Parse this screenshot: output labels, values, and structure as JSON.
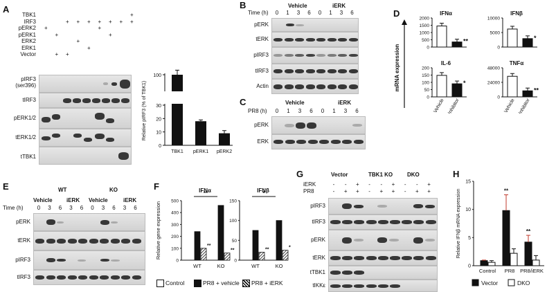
{
  "panels": {
    "A": "A",
    "B": "B",
    "C": "C",
    "D": "D",
    "E": "E",
    "F": "F",
    "G": "G",
    "H": "H"
  },
  "panel_a": {
    "row_labels": [
      "TBK1",
      "IRF3",
      "pERK2",
      "pERK1",
      "ERK2",
      "ERK1",
      "Vector"
    ],
    "row_signs": [
      [
        "",
        "",
        "",
        "",
        "",
        "",
        "",
        "",
        "+"
      ],
      [
        "",
        "",
        "+",
        "+",
        "+",
        "+",
        "+",
        "+",
        "+"
      ],
      [
        "+",
        "",
        "",
        "",
        "",
        "+",
        "",
        "",
        ""
      ],
      [
        "",
        "+",
        "",
        "",
        "",
        "",
        "+",
        "",
        ""
      ],
      [
        "",
        "",
        "",
        "+",
        "",
        "",
        "",
        "",
        ""
      ],
      [
        "",
        "",
        "",
        "",
        "+",
        "",
        "",
        "",
        ""
      ],
      [
        "",
        "+",
        "+",
        "",
        "",
        "",
        "",
        "",
        ""
      ]
    ],
    "blot_labels": [
      "pIRF3",
      "(ser396)",
      "tIRF3",
      "pERK1/2",
      "tERK1/2",
      "tTBK1"
    ]
  },
  "panel_b": {
    "time_label": "Time (h)",
    "group_vehicle": "Vehicle",
    "group_ierk": "iERK",
    "times": [
      "0",
      "1",
      "3",
      "6",
      "0",
      "1",
      "3",
      "6"
    ],
    "blots": [
      "pERK",
      "tERK",
      "pIRF3",
      "tIRF3",
      "Actin"
    ]
  },
  "panel_c": {
    "time_label": "PR8 (h)",
    "group_vehicle": "Vehicle",
    "group_ierk": "iERK",
    "times": [
      "0",
      "1",
      "3",
      "6",
      "0",
      "1",
      "3",
      "6"
    ],
    "blots": [
      "pERK",
      "ERK"
    ]
  },
  "panel_e": {
    "wt": "WT",
    "ko": "KO",
    "vehicle": "Vehicle",
    "ierk": "iERK",
    "time_label": "Time (h)",
    "times": [
      "0",
      "3",
      "6",
      "3",
      "6",
      "0",
      "3",
      "6",
      "3",
      "6"
    ],
    "blots": [
      "pERK",
      "tERK",
      "pIRF3",
      "tIRF3"
    ]
  },
  "panel_g": {
    "groups": [
      "Vector",
      "TBK1 KO",
      "DKO"
    ],
    "row_ierk": "iERK",
    "row_pr8": "PR8",
    "ierk_signs": [
      "-",
      "-",
      "+",
      "-",
      "-",
      "+",
      "-",
      "-",
      "+"
    ],
    "pr8_signs": [
      "-",
      "+",
      "+",
      "-",
      "+",
      "+",
      "-",
      "+",
      "+"
    ],
    "blots": [
      "pIRF3",
      "tIRF3",
      "pERK",
      "tERK",
      "tTBK1",
      "tIKKε"
    ]
  },
  "chart_data": [
    {
      "id": "A-bar",
      "type": "bar",
      "categories": [
        "TBK1",
        "pERK1",
        "pERK2"
      ],
      "values": [
        100,
        18,
        9
      ],
      "errors": [
        3,
        1,
        2
      ],
      "ylabel": "Relative pIRF3 (% of TBK1)",
      "yticks": [
        "0",
        "10",
        "20",
        "30",
        "100"
      ],
      "axis_break": [
        30,
        90
      ]
    },
    {
      "id": "D-IFNa",
      "type": "bar",
      "title": "IFNα",
      "categories": [
        "Vehicle",
        "Inhibitor"
      ],
      "values": [
        1450,
        350
      ],
      "ylim": [
        0,
        2000
      ],
      "yticks": [
        "0",
        "500",
        "1000",
        "1500",
        "2000"
      ],
      "annotations": [
        "",
        "**"
      ]
    },
    {
      "id": "D-IFNb",
      "type": "bar",
      "title": "IFNβ",
      "categories": [
        "Vehicle",
        "Inhibitor"
      ],
      "values": [
        6200,
        2900
      ],
      "ylim": [
        0,
        10000
      ],
      "yticks": [
        "0",
        "5000",
        "10000"
      ],
      "annotations": [
        "",
        "*"
      ]
    },
    {
      "id": "D-IL6",
      "type": "bar",
      "title": "IL-6",
      "categories": [
        "Vehicle",
        "Inhibitor"
      ],
      "values": [
        148,
        90
      ],
      "ylim": [
        0,
        200
      ],
      "yticks": [
        "0",
        "50",
        "100",
        "150",
        "200"
      ],
      "annotations": [
        "",
        "*"
      ]
    },
    {
      "id": "D-TNFa",
      "type": "bar",
      "title": "TNFα",
      "categories": [
        "Vehicle",
        "Inhibitor"
      ],
      "values": [
        34000,
        10000
      ],
      "ylim": [
        0,
        48000
      ],
      "yticks": [
        "0",
        "24000",
        "48000"
      ],
      "annotations": [
        "",
        "**"
      ]
    },
    {
      "id": "F-IFNa",
      "type": "bar",
      "title": "IFNα",
      "categories": [
        "WT",
        "KO"
      ],
      "series": [
        {
          "name": "Control",
          "values": [
            0,
            0
          ]
        },
        {
          "name": "PR8 + vehicle",
          "values": [
            240,
            460
          ]
        },
        {
          "name": "PR8 + iERK",
          "values": [
            100,
            60
          ]
        }
      ],
      "ylim": [
        0,
        500
      ],
      "yticks": [
        "0",
        "100",
        "200",
        "300",
        "400",
        "500"
      ],
      "annotations": [
        "**",
        "**",
        "**"
      ]
    },
    {
      "id": "F-IFNb",
      "type": "bar",
      "title": "IFNβ",
      "categories": [
        "WT",
        "KO"
      ],
      "series": [
        {
          "name": "Control",
          "values": [
            0,
            0
          ]
        },
        {
          "name": "PR8 + vehicle",
          "values": [
            75,
            100
          ]
        },
        {
          "name": "PR8 + iERK",
          "values": [
            20,
            25
          ]
        }
      ],
      "ylim": [
        0,
        150
      ],
      "yticks": [
        "0",
        "50",
        "100",
        "150"
      ],
      "annotations": [
        "*",
        "**",
        "**"
      ]
    },
    {
      "id": "H",
      "type": "bar",
      "categories": [
        "Control",
        "PR8",
        "PR8/iERK"
      ],
      "series": [
        {
          "name": "Vector",
          "values": [
            0.9,
            9.8,
            4.2
          ]
        },
        {
          "name": "DKO",
          "values": [
            0.6,
            2.2,
            1.0
          ]
        }
      ],
      "errors": [
        [
          0.1,
          2.8,
          1.2
        ],
        [
          0.3,
          0.8,
          0.8
        ]
      ],
      "ylabel": "Relative IFNβ mRNA expression",
      "ylim": [
        0,
        15
      ],
      "yticks": [
        "0",
        "5",
        "10",
        "15"
      ],
      "annotations": [
        "**",
        "**"
      ]
    }
  ],
  "labels": {
    "a_ylabel": "Relative pIRF3 (% of TBK1)",
    "d_ylabel": "mRNA expression",
    "f_ylabel": "Relative gene expression",
    "h_ylabel": "Relative IFNβ mRNA expression",
    "f_legend": [
      "Control",
      "PR8 + vehicle",
      "PR8 + iERK"
    ],
    "h_legend": [
      "Vector",
      "DKO"
    ]
  }
}
